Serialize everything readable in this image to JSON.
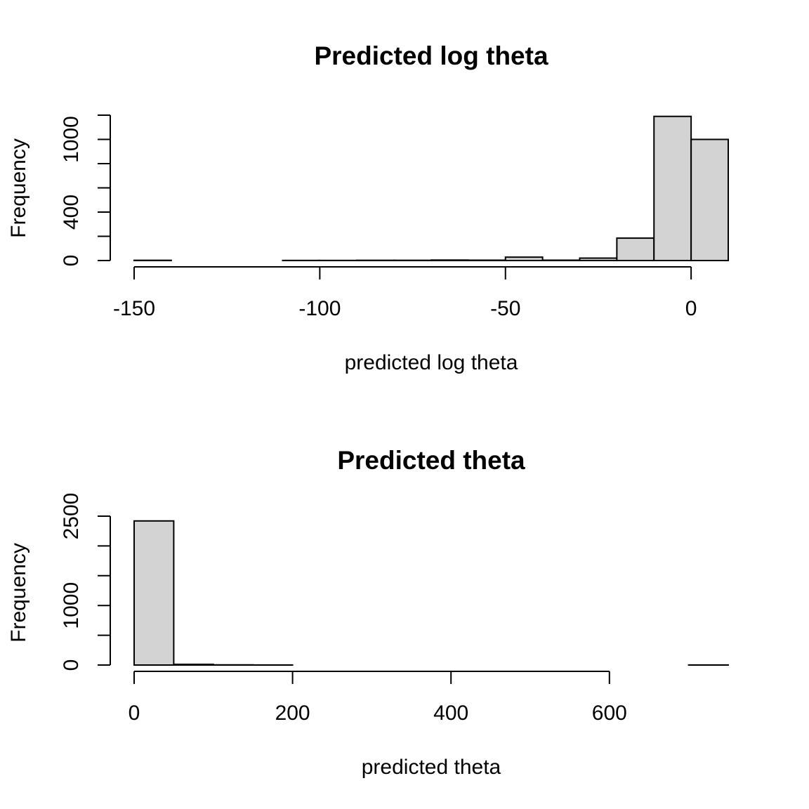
{
  "chart_data": [
    {
      "type": "bar",
      "title": "Predicted log theta",
      "xlabel": "predicted log theta",
      "ylabel": "Frequency",
      "xlim": [
        -150,
        10
      ],
      "ylim": [
        0,
        1200
      ],
      "x_ticks": [
        -150,
        -100,
        -50,
        0
      ],
      "x_tick_labels": [
        "-150",
        "-100",
        "-50",
        "0"
      ],
      "y_ticks": [
        0,
        200,
        400,
        600,
        800,
        1000,
        1200
      ],
      "y_tick_labels": [
        "0",
        "",
        "400",
        "",
        "",
        "1000",
        ""
      ],
      "bins": [
        {
          "x0": -150,
          "x1": -140,
          "count": 2
        },
        {
          "x0": -140,
          "x1": -130,
          "count": 0
        },
        {
          "x0": -130,
          "x1": -120,
          "count": 0
        },
        {
          "x0": -120,
          "x1": -110,
          "count": 0
        },
        {
          "x0": -110,
          "x1": -100,
          "count": 1
        },
        {
          "x0": -100,
          "x1": -90,
          "count": 1
        },
        {
          "x0": -90,
          "x1": -80,
          "count": 2
        },
        {
          "x0": -80,
          "x1": -70,
          "count": 2
        },
        {
          "x0": -70,
          "x1": -60,
          "count": 4
        },
        {
          "x0": -60,
          "x1": -50,
          "count": 3
        },
        {
          "x0": -50,
          "x1": -40,
          "count": 28
        },
        {
          "x0": -40,
          "x1": -30,
          "count": 3
        },
        {
          "x0": -30,
          "x1": -20,
          "count": 20
        },
        {
          "x0": -20,
          "x1": -10,
          "count": 185
        },
        {
          "x0": -10,
          "x1": 0,
          "count": 1190
        },
        {
          "x0": 0,
          "x1": 10,
          "count": 1000
        }
      ],
      "grid": false
    },
    {
      "type": "bar",
      "title": "Predicted theta",
      "xlabel": "predicted theta",
      "ylabel": "Frequency",
      "xlim": [
        0,
        750
      ],
      "ylim": [
        0,
        2500
      ],
      "x_ticks": [
        0,
        200,
        400,
        600
      ],
      "x_tick_labels": [
        "0",
        "200",
        "400",
        "600"
      ],
      "y_ticks": [
        0,
        500,
        1000,
        1500,
        2000,
        2500
      ],
      "y_tick_labels": [
        "0",
        "",
        "1000",
        "",
        "",
        "2500"
      ],
      "bins": [
        {
          "x0": 0,
          "x1": 50,
          "count": 2420
        },
        {
          "x0": 50,
          "x1": 100,
          "count": 12
        },
        {
          "x0": 100,
          "x1": 150,
          "count": 3
        },
        {
          "x0": 150,
          "x1": 200,
          "count": 1
        },
        {
          "x0": 200,
          "x1": 250,
          "count": 0
        },
        {
          "x0": 250,
          "x1": 300,
          "count": 0
        },
        {
          "x0": 300,
          "x1": 350,
          "count": 0
        },
        {
          "x0": 350,
          "x1": 400,
          "count": 0
        },
        {
          "x0": 400,
          "x1": 450,
          "count": 0
        },
        {
          "x0": 450,
          "x1": 500,
          "count": 0
        },
        {
          "x0": 500,
          "x1": 550,
          "count": 0
        },
        {
          "x0": 550,
          "x1": 600,
          "count": 0
        },
        {
          "x0": 600,
          "x1": 650,
          "count": 0
        },
        {
          "x0": 650,
          "x1": 700,
          "count": 0
        },
        {
          "x0": 700,
          "x1": 750,
          "count": 1
        }
      ],
      "grid": false
    }
  ]
}
